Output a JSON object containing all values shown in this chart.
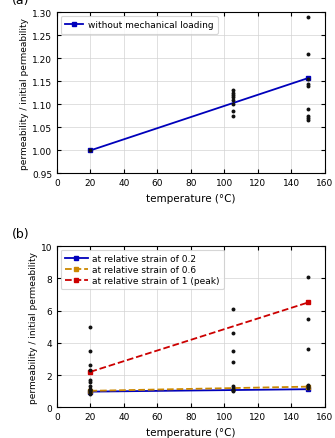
{
  "panel_a": {
    "title": "(a)",
    "ylabel": "permeability / initial permeability",
    "xlabel": "temperature (°C)",
    "xlim": [
      0,
      160
    ],
    "ylim": [
      0.95,
      1.3
    ],
    "yticks": [
      0.95,
      1.0,
      1.05,
      1.1,
      1.15,
      1.2,
      1.25,
      1.3
    ],
    "xticks": [
      0,
      20,
      40,
      60,
      80,
      100,
      120,
      140,
      160
    ],
    "scatter_data": [
      [
        20,
        1.0
      ],
      [
        105,
        1.13
      ],
      [
        105,
        1.125
      ],
      [
        105,
        1.12
      ],
      [
        105,
        1.115
      ],
      [
        105,
        1.11
      ],
      [
        105,
        1.1
      ],
      [
        105,
        1.085
      ],
      [
        105,
        1.075
      ],
      [
        150,
        1.29
      ],
      [
        150,
        1.21
      ],
      [
        150,
        1.155
      ],
      [
        150,
        1.145
      ],
      [
        150,
        1.14
      ],
      [
        150,
        1.09
      ],
      [
        150,
        1.075
      ],
      [
        150,
        1.07
      ],
      [
        150,
        1.065
      ]
    ],
    "line_x": [
      20,
      150
    ],
    "line_y": [
      1.0,
      1.157
    ],
    "line_color": "#0000bb",
    "legend_label": "without mechanical loading",
    "scatter_color": "#111111"
  },
  "panel_b": {
    "title": "(b)",
    "ylabel": "permeability / initial permeability",
    "xlabel": "temperature (°C)",
    "xlim": [
      0,
      160
    ],
    "ylim": [
      0,
      10
    ],
    "yticks": [
      0,
      2,
      4,
      6,
      8,
      10
    ],
    "xticks": [
      0,
      20,
      40,
      60,
      80,
      100,
      120,
      140,
      160
    ],
    "scatter_data": [
      [
        20,
        1.7
      ],
      [
        20,
        1.55
      ],
      [
        20,
        1.3
      ],
      [
        20,
        1.15
      ],
      [
        20,
        1.1
      ],
      [
        20,
        1.05
      ],
      [
        20,
        1.0
      ],
      [
        20,
        0.95
      ],
      [
        20,
        0.9
      ],
      [
        20,
        0.85
      ],
      [
        20,
        5.0
      ],
      [
        20,
        3.5
      ],
      [
        20,
        2.6
      ],
      [
        20,
        2.3
      ],
      [
        105,
        1.3
      ],
      [
        105,
        1.2
      ],
      [
        105,
        1.1
      ],
      [
        105,
        1.05
      ],
      [
        105,
        1.0
      ],
      [
        105,
        6.1
      ],
      [
        105,
        4.6
      ],
      [
        105,
        3.5
      ],
      [
        105,
        2.8
      ],
      [
        150,
        1.35
      ],
      [
        150,
        1.3
      ],
      [
        150,
        1.25
      ],
      [
        150,
        1.2
      ],
      [
        150,
        8.1
      ],
      [
        150,
        5.5
      ],
      [
        150,
        3.6
      ]
    ],
    "scatter_color": "#111111",
    "lines": [
      {
        "x": [
          20,
          150
        ],
        "y": [
          0.97,
          1.12
        ],
        "color": "#0000bb",
        "style": "-",
        "label": "at relative strain of 0.2",
        "marker": "s",
        "markersize": 3
      },
      {
        "x": [
          20,
          150
        ],
        "y": [
          1.02,
          1.28
        ],
        "color": "#cc8800",
        "style": "--",
        "label": "at relative strain of 0.6",
        "marker": "s",
        "markersize": 3
      },
      {
        "x": [
          20,
          150
        ],
        "y": [
          2.2,
          6.5
        ],
        "color": "#cc0000",
        "style": "--",
        "label": "at relative strain of 1 (peak)",
        "marker": "s",
        "markersize": 3
      }
    ]
  }
}
